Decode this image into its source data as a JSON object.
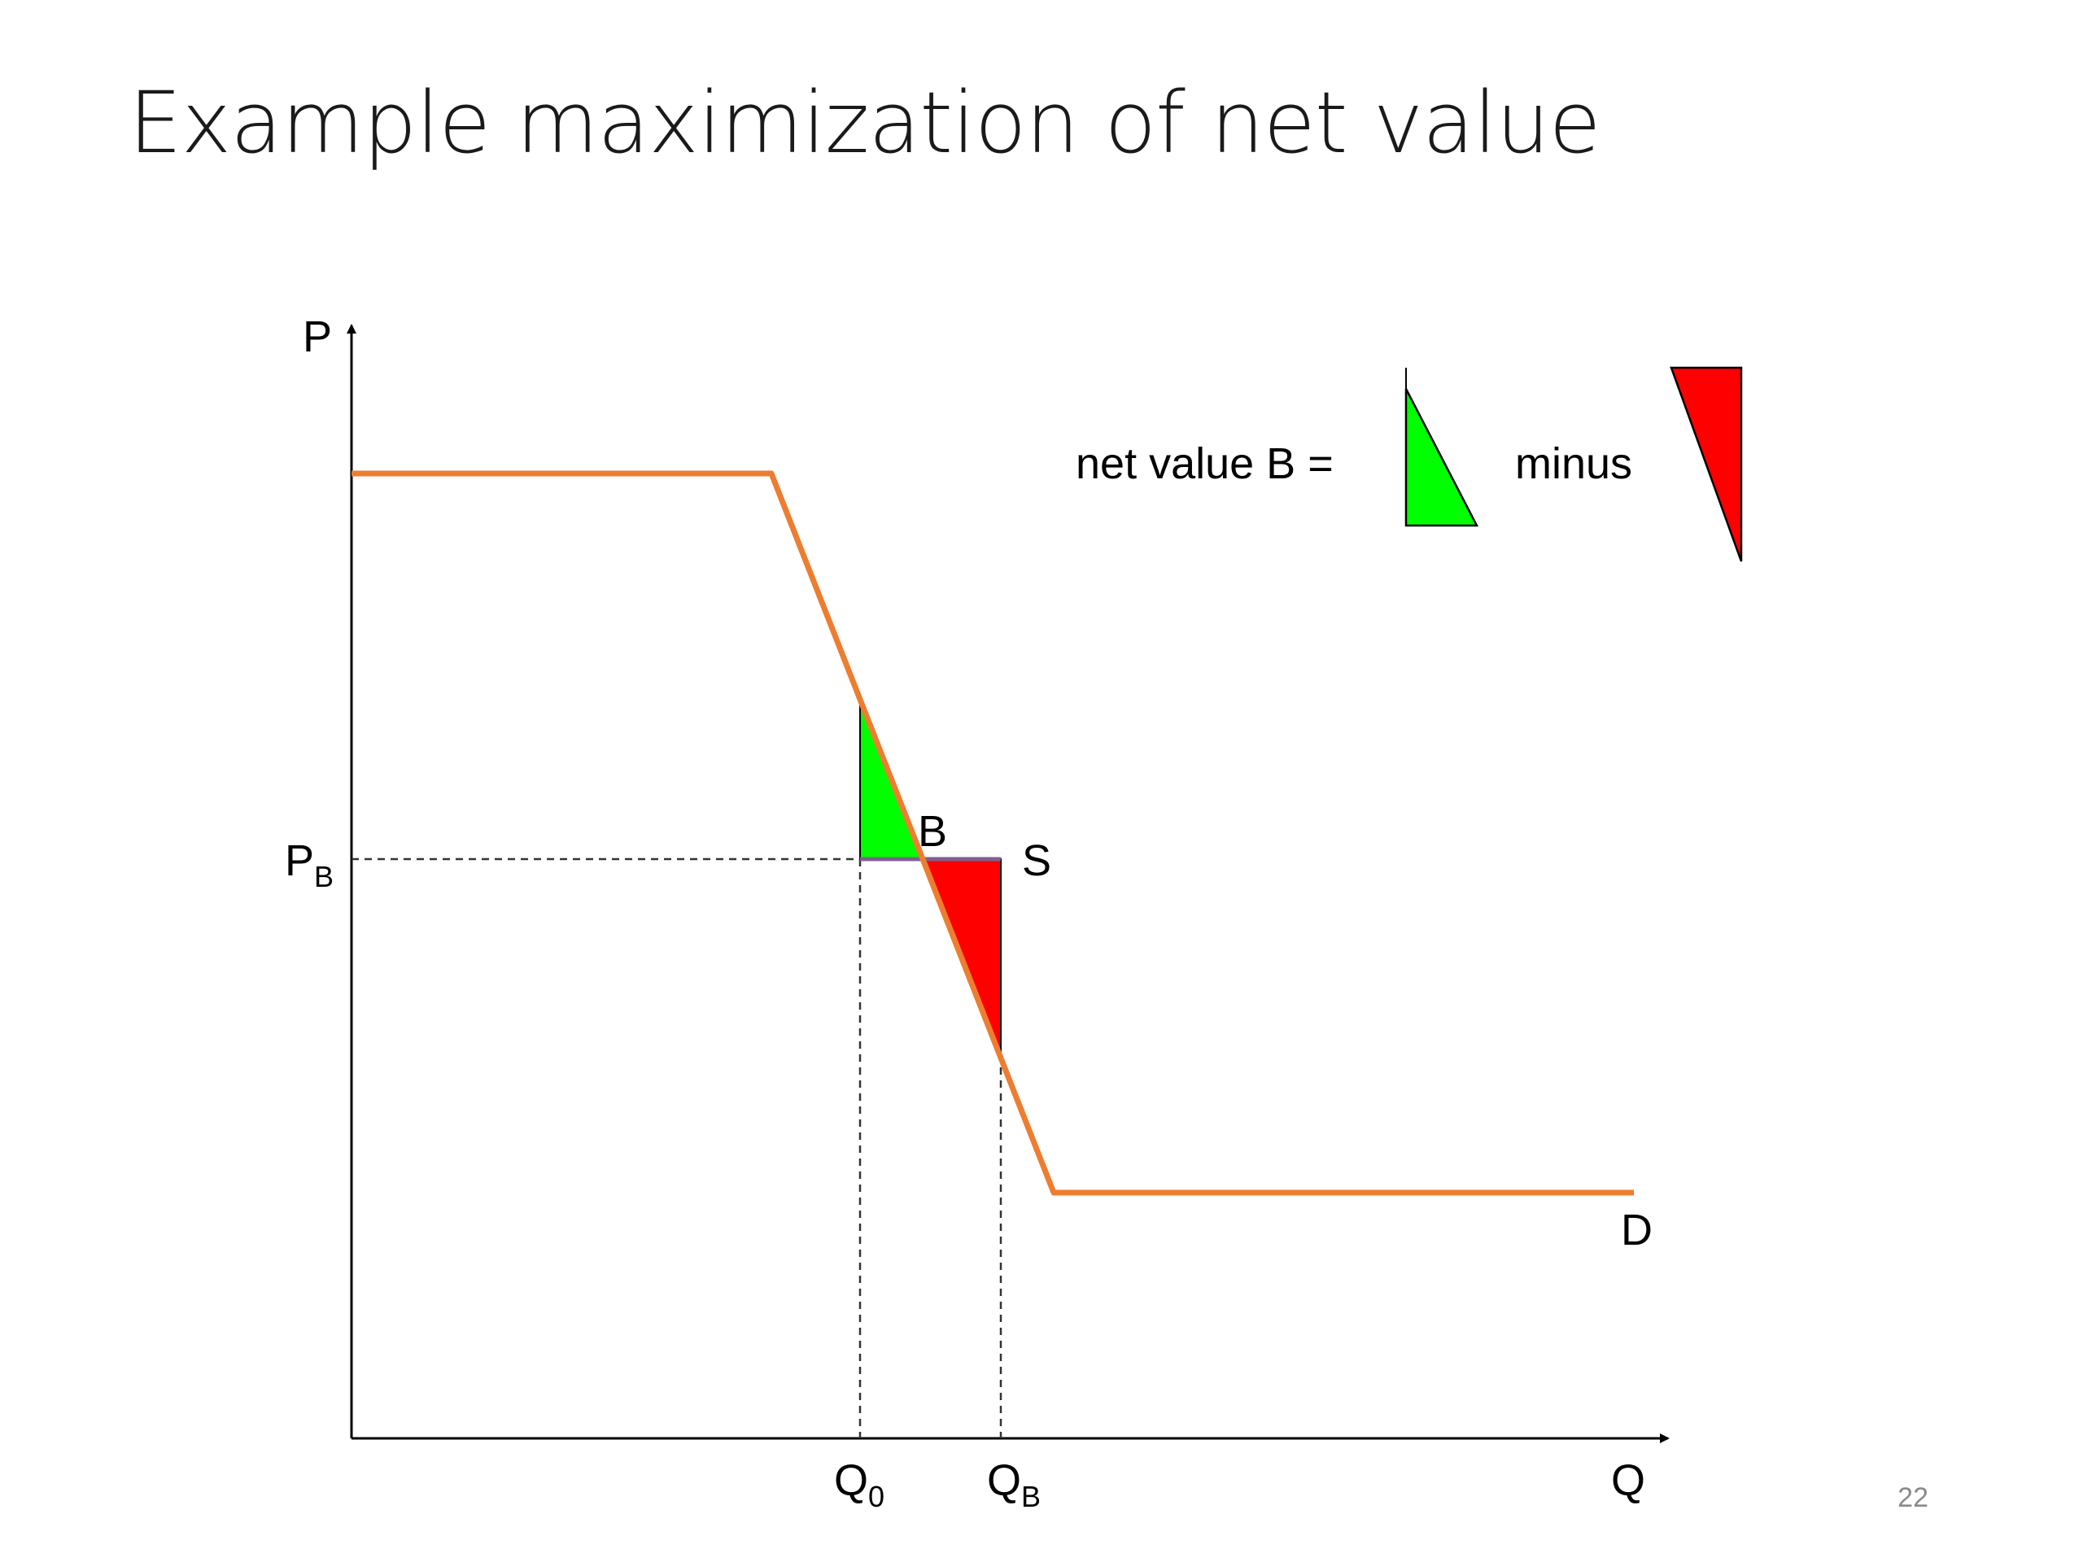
{
  "slide": {
    "title": "Example maximization of net value",
    "page_number": "22"
  },
  "diagram": {
    "axis_labels": {
      "y": "P",
      "x": "Q"
    },
    "price_label": {
      "main": "P",
      "sub": "B"
    },
    "quantity_labels": [
      {
        "main": "Q",
        "sub": "0"
      },
      {
        "main": "Q",
        "sub": "B"
      }
    ],
    "point_label": "B",
    "supply_label": "S",
    "demand_label": "D",
    "legend": {
      "text": "net value B =",
      "operator": "minus"
    },
    "colors": {
      "demand": "#ED7D31",
      "gain": "#00FF00",
      "loss": "#FF0000",
      "supply": "#7F5F8F"
    }
  }
}
